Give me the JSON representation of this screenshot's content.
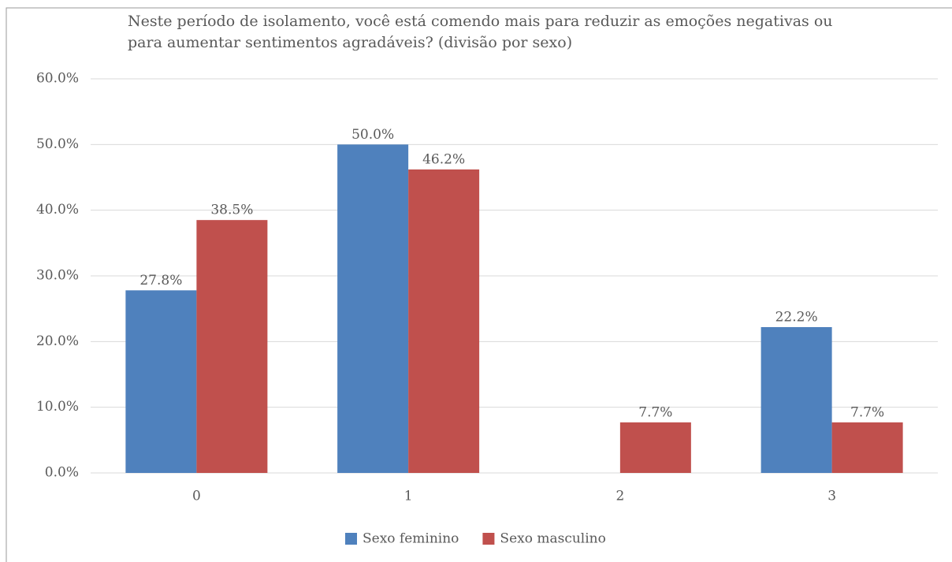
{
  "chart_data": {
    "type": "bar",
    "title": "Neste período de isolamento, você está comendo mais para reduzir as emoções negativas ou para aumentar sentimentos agradáveis? (divisão por sexo)",
    "categories": [
      "0",
      "1",
      "2",
      "3"
    ],
    "series": [
      {
        "name": "Sexo feminino",
        "color": "#4f81bd",
        "values": [
          27.8,
          50.0,
          null,
          22.2
        ],
        "value_labels": [
          "27.8%",
          "50.0%",
          null,
          "22.2%"
        ]
      },
      {
        "name": "Sexo masculino",
        "color": "#c0504d",
        "values": [
          38.5,
          46.2,
          7.7,
          7.7
        ],
        "value_labels": [
          "38.5%",
          "46.2%",
          "7.7%",
          "7.7%"
        ]
      }
    ],
    "ylim": [
      0,
      60
    ],
    "yticks": [
      {
        "value": 0,
        "label": "0.0%"
      },
      {
        "value": 10,
        "label": "10.0%"
      },
      {
        "value": 20,
        "label": "20.0%"
      },
      {
        "value": 30,
        "label": "30.0%"
      },
      {
        "value": 40,
        "label": "40.0%"
      },
      {
        "value": 50,
        "label": "50.0%"
      },
      {
        "value": 60,
        "label": "60.0%"
      }
    ],
    "grid": true,
    "legend": "bottom"
  }
}
